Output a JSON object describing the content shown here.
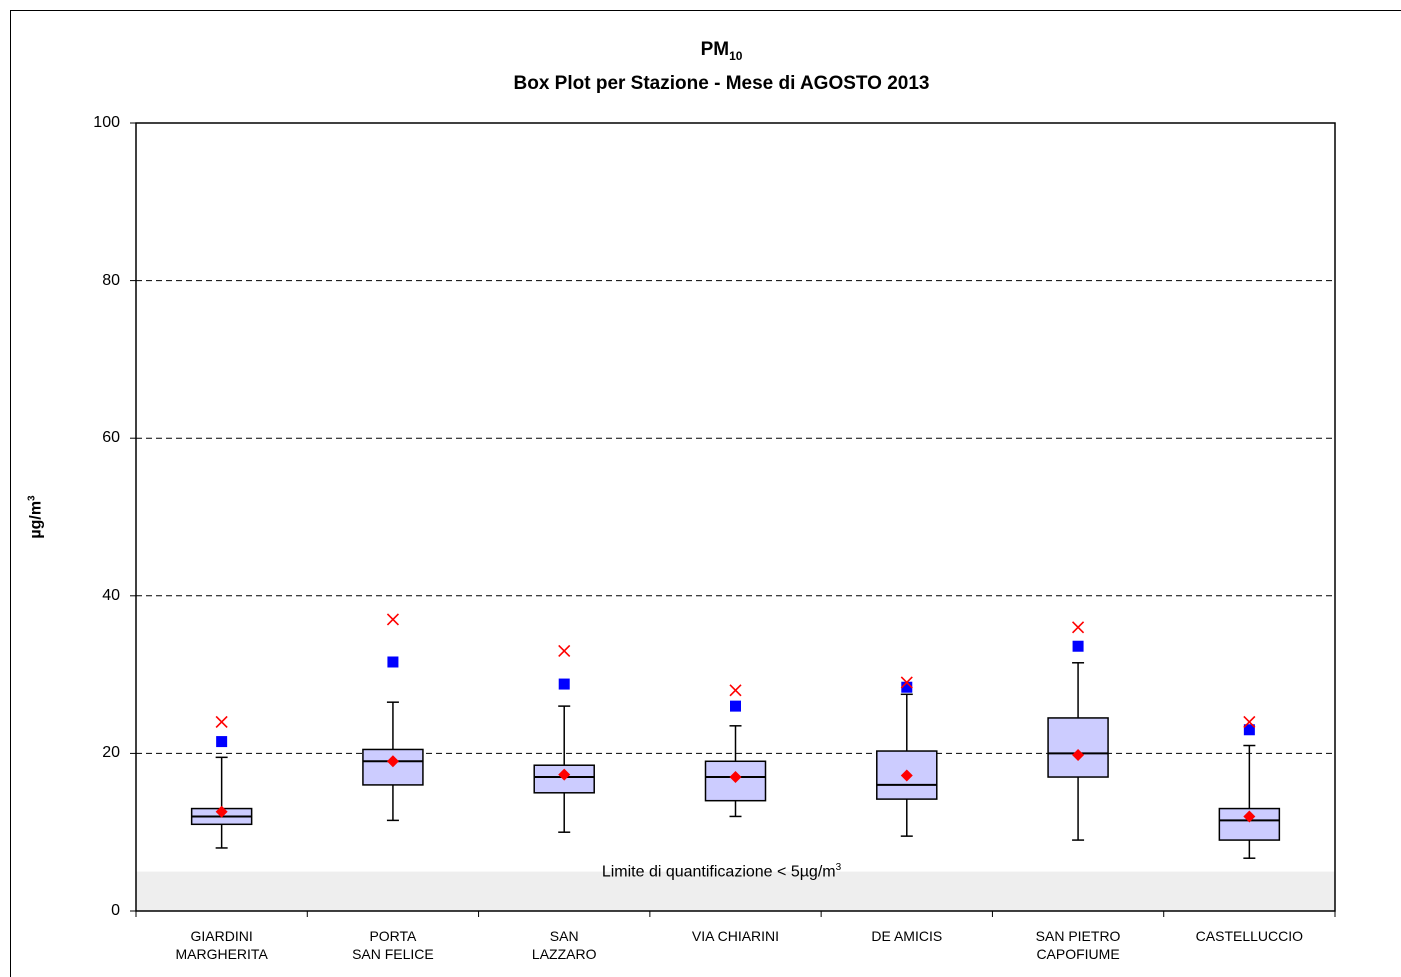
{
  "chart_data": {
    "type": "box",
    "title": "PM",
    "title_subscript": "10",
    "subtitle": "Box Plot per Stazione - Mese di AGOSTO 2013",
    "ylabel": "µg/m",
    "ylabel_superscript": "3",
    "ylim": [
      0,
      100
    ],
    "yticks": [
      "0",
      "20",
      "40",
      "60",
      "80",
      "100"
    ],
    "ytick_values": [
      0,
      20,
      40,
      60,
      80,
      100
    ],
    "grid": "horizontal dashed",
    "quantification_limit": {
      "value": 5,
      "text": "Limite di quantificazione < 5µg/m",
      "superscript": "3"
    },
    "colors": {
      "box_fill": "#ccccff",
      "mean_marker": "#ff0000",
      "percentile_marker": "#0000ff",
      "max_marker": "#ff0000",
      "lq_band": "#eeeeee"
    },
    "categories": [
      {
        "line1": "GIARDINI",
        "line2": "MARGHERITA"
      },
      {
        "line1": "PORTA",
        "line2": "SAN FELICE"
      },
      {
        "line1": "SAN",
        "line2": "LAZZARO"
      },
      {
        "line1": "VIA CHIARINI",
        "line2": ""
      },
      {
        "line1": "DE AMICIS",
        "line2": ""
      },
      {
        "line1": "SAN PIETRO",
        "line2": "CAPOFIUME"
      },
      {
        "line1": "CASTELLUCCIO",
        "line2": ""
      }
    ],
    "boxes": [
      {
        "whisker_low": 8,
        "q1": 11,
        "median": 12,
        "q3": 13,
        "whisker_high": 19.5,
        "mean": 12.6,
        "upper_marker": 21.5,
        "max": 24
      },
      {
        "whisker_low": 11.5,
        "q1": 16,
        "median": 19,
        "q3": 20.5,
        "whisker_high": 26.5,
        "mean": 19,
        "upper_marker": 31.6,
        "max": 37
      },
      {
        "whisker_low": 10,
        "q1": 15,
        "median": 17,
        "q3": 18.5,
        "whisker_high": 26,
        "mean": 17.3,
        "upper_marker": 28.8,
        "max": 33
      },
      {
        "whisker_low": 12,
        "q1": 14,
        "median": 17,
        "q3": 19,
        "whisker_high": 23.5,
        "mean": 17,
        "upper_marker": 26,
        "max": 28
      },
      {
        "whisker_low": 9.5,
        "q1": 14.2,
        "median": 16,
        "q3": 20.3,
        "whisker_high": 27.5,
        "mean": 17.2,
        "upper_marker": 28.4,
        "max": 29
      },
      {
        "whisker_low": 9,
        "q1": 17,
        "median": 20,
        "q3": 24.5,
        "whisker_high": 31.5,
        "mean": 19.8,
        "upper_marker": 33.6,
        "max": 36
      },
      {
        "whisker_low": 6.7,
        "q1": 9,
        "median": 11.5,
        "q3": 13,
        "whisker_high": 21,
        "mean": 12,
        "upper_marker": 23,
        "max": 24
      }
    ]
  }
}
